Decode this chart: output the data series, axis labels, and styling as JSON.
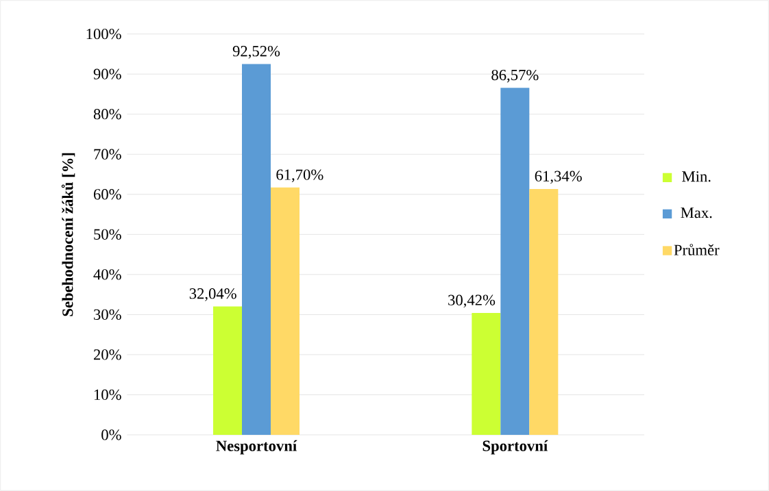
{
  "chart_data": {
    "type": "bar",
    "categories": [
      "Nesportovní",
      "Sportovní"
    ],
    "ylabel": "Sebehodnocení žáků [%]",
    "series": [
      {
        "name": "Min.",
        "color": "#ccff33",
        "values": [
          32.04,
          30.42
        ],
        "value_labels": [
          "32,04%",
          "30,42%"
        ]
      },
      {
        "name": "Max.",
        "color": "#5b9bd5",
        "values": [
          92.52,
          86.57
        ],
        "value_labels": [
          "92,52%",
          "86,57%"
        ]
      },
      {
        "name": "Průměr",
        "color": "#ffd966",
        "values": [
          61.7,
          61.34
        ],
        "value_labels": [
          "61,70%",
          "61,34%"
        ]
      }
    ],
    "ylim": [
      0,
      100
    ],
    "yticks": [
      {
        "value": 0,
        "label": "0%"
      },
      {
        "value": 10,
        "label": "10%"
      },
      {
        "value": 20,
        "label": "20%"
      },
      {
        "value": 30,
        "label": "30%"
      },
      {
        "value": 40,
        "label": "40%"
      },
      {
        "value": 50,
        "label": "50%"
      },
      {
        "value": 60,
        "label": "60%"
      },
      {
        "value": 70,
        "label": "70%"
      },
      {
        "value": 80,
        "label": "80%"
      },
      {
        "value": 90,
        "label": "90%"
      },
      {
        "value": 100,
        "label": "100%"
      }
    ],
    "grid": "y",
    "legend": "right"
  }
}
